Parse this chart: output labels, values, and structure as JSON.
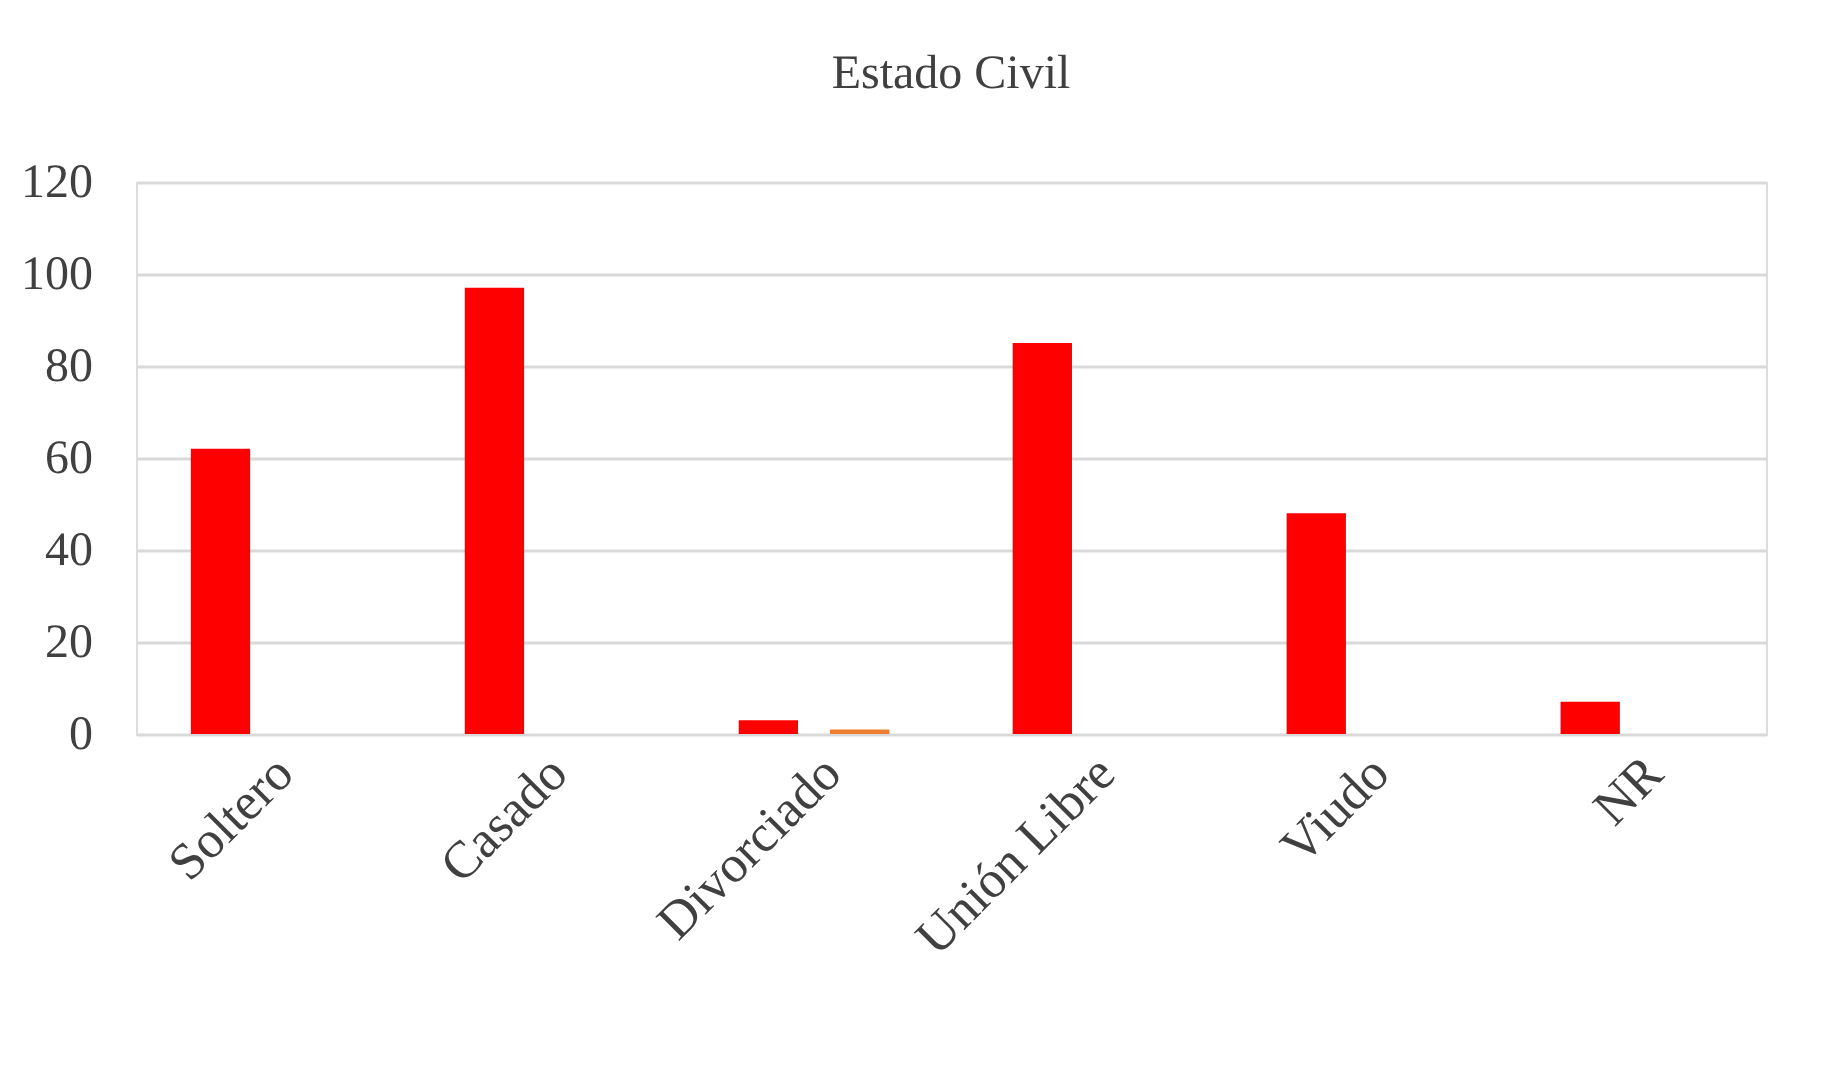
{
  "chart_data": {
    "type": "bar",
    "title": "Estado Civil",
    "categories": [
      "Soltero",
      "Casado",
      "Divorciado",
      "Unión Libre",
      "Viudo",
      "NR"
    ],
    "series": [
      {
        "color": "#ff0000",
        "values": [
          62,
          97,
          3,
          85,
          48,
          7
        ]
      },
      {
        "color": "#ed7d31",
        "values": [
          null,
          null,
          1,
          null,
          null,
          null
        ]
      }
    ],
    "ylim": [
      0,
      120
    ],
    "yticks": [
      0,
      20,
      40,
      60,
      80,
      100,
      120
    ],
    "grid": "y",
    "legend": false
  }
}
